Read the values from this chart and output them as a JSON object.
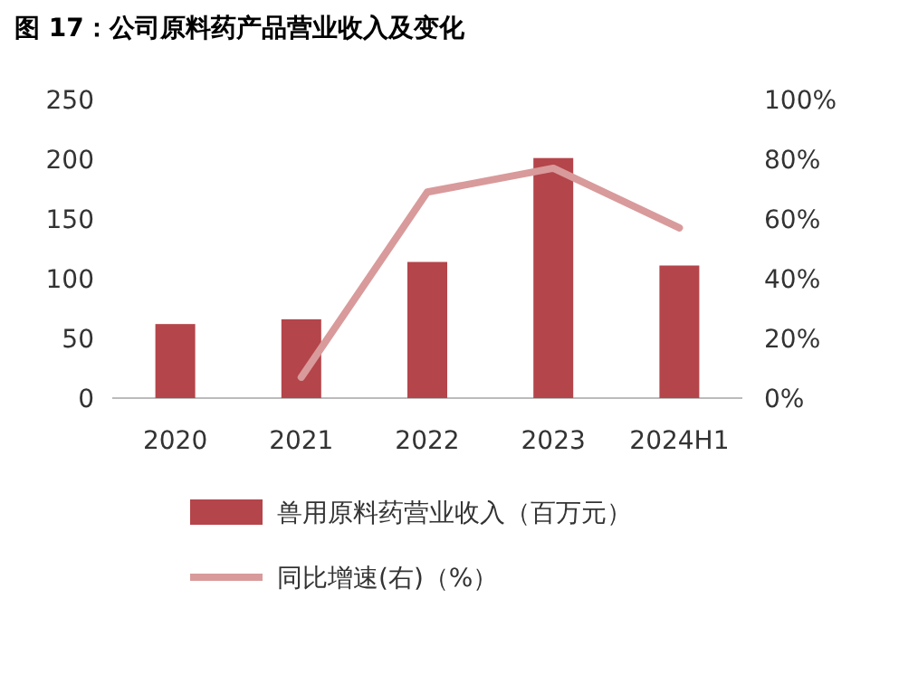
{
  "chart_data": {
    "type": "bar",
    "title": "图 17：公司原料药产品营业收入及变化",
    "categories": [
      "2020",
      "2021",
      "2022",
      "2023",
      "2024H1"
    ],
    "series": [
      {
        "name": "兽用原料药营业收入（百万元）",
        "color": "#b4454a",
        "values": [
          62,
          66,
          114,
          201,
          111
        ]
      },
      {
        "name": "同比增速(右)（%）",
        "type": "line",
        "axis": "y2",
        "color": "#d99a9b",
        "values": [
          null,
          7,
          69,
          77,
          57
        ]
      }
    ],
    "ylim": [
      0,
      250
    ],
    "yticks": [
      0,
      50,
      100,
      150,
      200,
      250
    ],
    "y2lim": [
      0,
      100
    ],
    "y2ticks": [
      {
        "value": 0,
        "label": "0%"
      },
      {
        "value": 20,
        "label": "20%"
      },
      {
        "value": 40,
        "label": "40%"
      },
      {
        "value": 60,
        "label": "60%"
      },
      {
        "value": 80,
        "label": "80%"
      },
      {
        "value": 100,
        "label": "100%"
      }
    ],
    "legend": "bottom",
    "marker": "none"
  }
}
